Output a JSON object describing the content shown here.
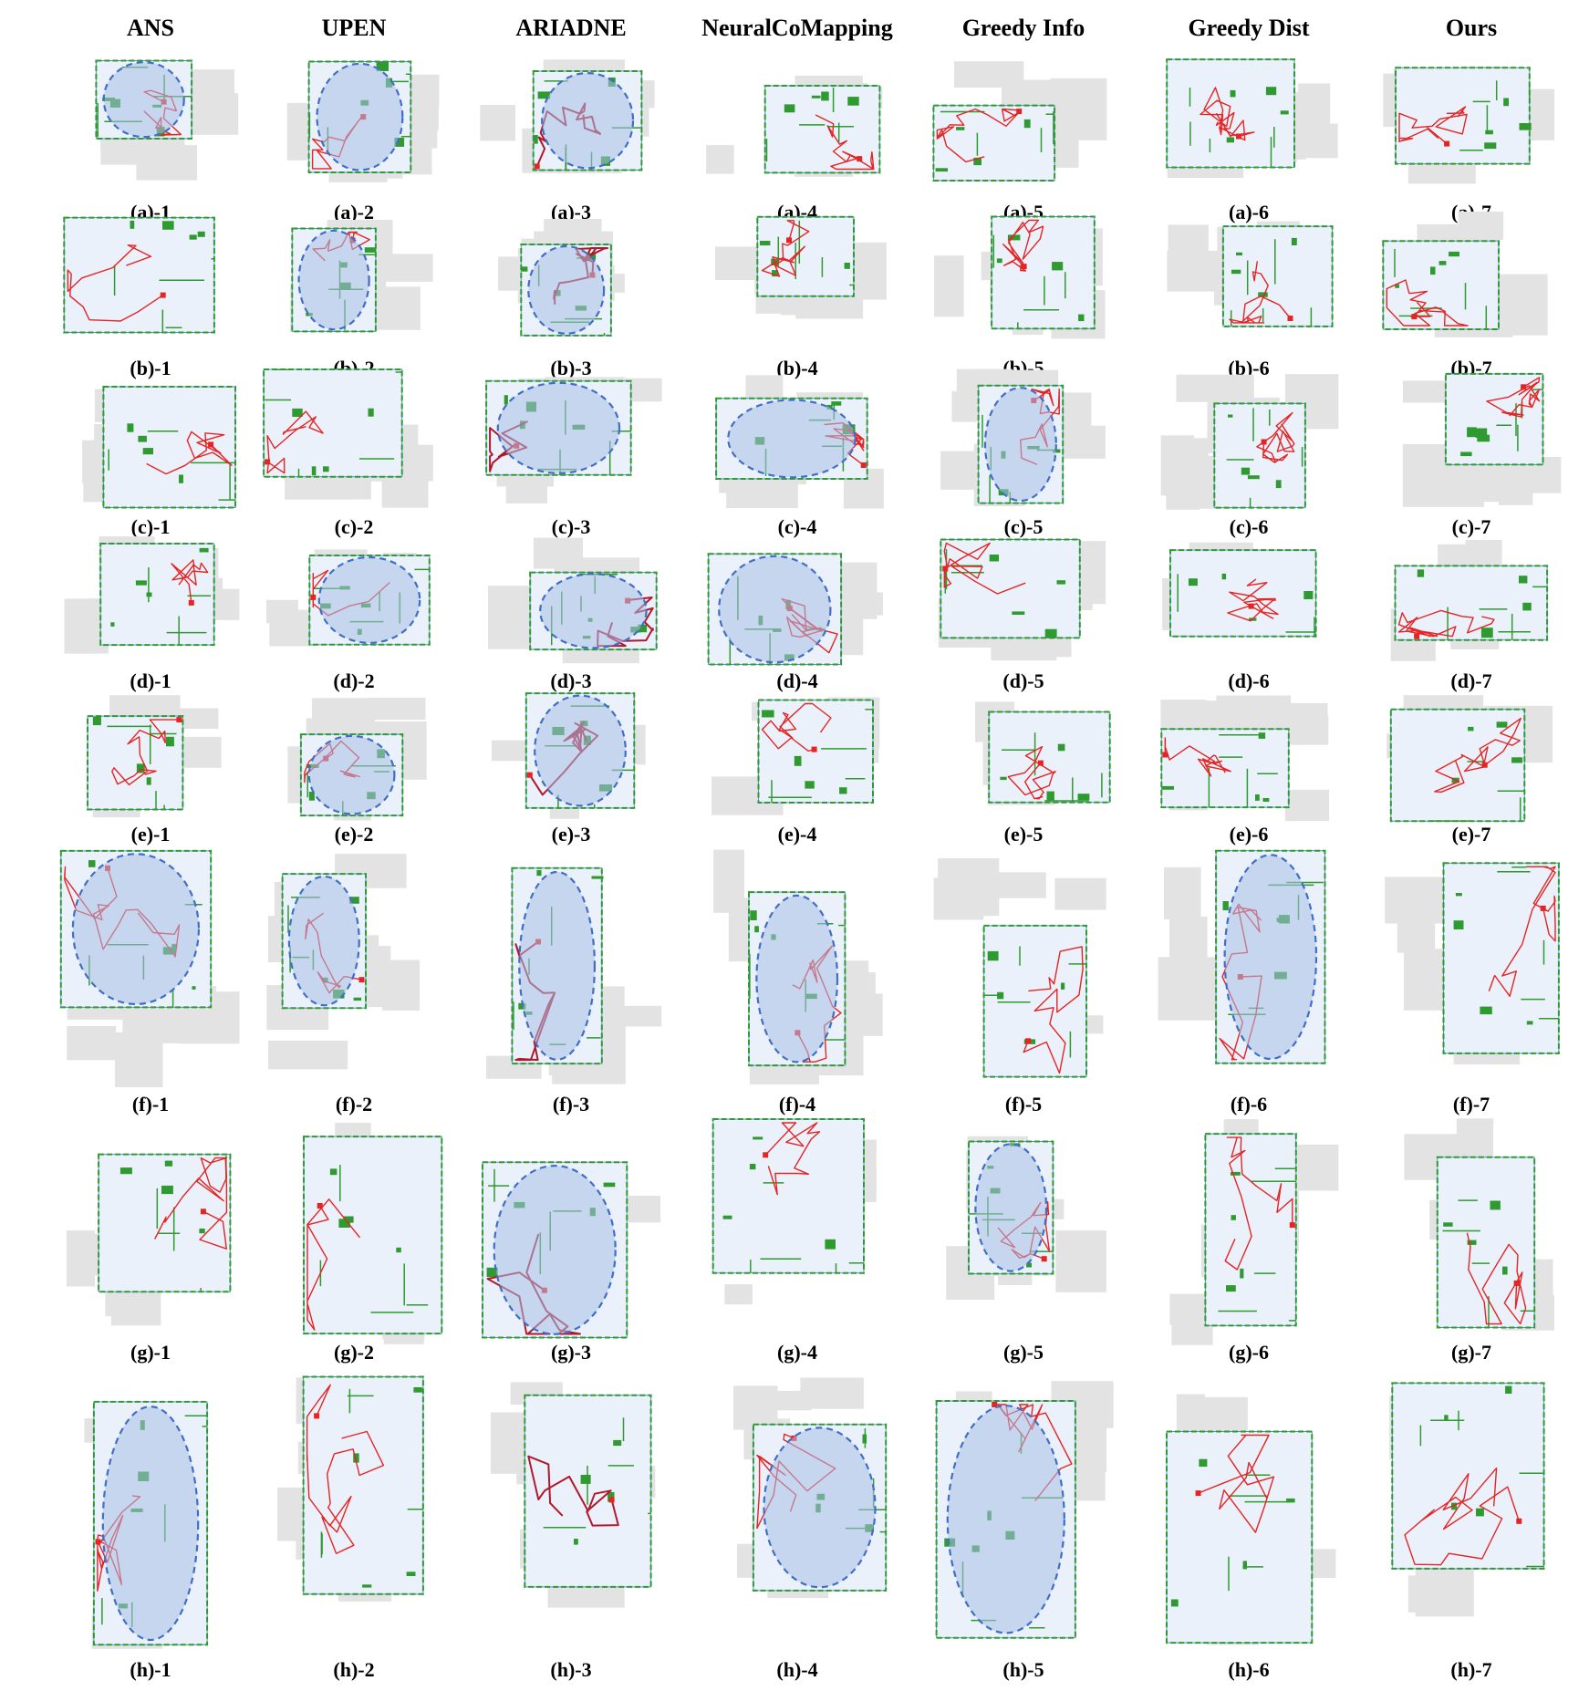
{
  "columns": [
    "ANS",
    "UPEN",
    "ARIADNE",
    "NeuralCoMapping",
    "Greedy Info",
    "Greedy Dist",
    "Ours"
  ],
  "rows": [
    "a",
    "b",
    "c",
    "d",
    "e",
    "f",
    "g",
    "h"
  ],
  "colors": {
    "background": "#ffffff",
    "unexplored": "#e3e3e3",
    "explored": "#eaf1fb",
    "obstacle": "#2f9a2f",
    "trajectory": "#e52424",
    "trajectory_dark": "#b0182c",
    "frontier": "#5b8fd0",
    "highlight_fill": "#a9bfe6",
    "highlight_stroke": "#3f6fc4"
  },
  "panels": [
    {
      "id": "a-1",
      "caption": "(a)-1",
      "highlight": true
    },
    {
      "id": "a-2",
      "caption": "(a)-2",
      "highlight": true
    },
    {
      "id": "a-3",
      "caption": "(a)-3",
      "highlight": true
    },
    {
      "id": "a-4",
      "caption": "(a)-4",
      "highlight": false
    },
    {
      "id": "a-5",
      "caption": "(a)-5",
      "highlight": false
    },
    {
      "id": "a-6",
      "caption": "(a)-6",
      "highlight": false
    },
    {
      "id": "a-7",
      "caption": "(a)-7",
      "highlight": false
    },
    {
      "id": "b-1",
      "caption": "(b)-1",
      "highlight": false
    },
    {
      "id": "b-2",
      "caption": "(b)-2",
      "highlight": true
    },
    {
      "id": "b-3",
      "caption": "(b)-3",
      "highlight": true
    },
    {
      "id": "b-4",
      "caption": "(b)-4",
      "highlight": false
    },
    {
      "id": "b-5",
      "caption": "(b)-5",
      "highlight": false
    },
    {
      "id": "b-6",
      "caption": "(b)-6",
      "highlight": false
    },
    {
      "id": "b-7",
      "caption": "(b)-7",
      "highlight": false
    },
    {
      "id": "c-1",
      "caption": "(c)-1",
      "highlight": false
    },
    {
      "id": "c-2",
      "caption": "(c)-2",
      "highlight": false
    },
    {
      "id": "c-3",
      "caption": "(c)-3",
      "highlight": true
    },
    {
      "id": "c-4",
      "caption": "(c)-4",
      "highlight": true
    },
    {
      "id": "c-5",
      "caption": "(c)-5",
      "highlight": true
    },
    {
      "id": "c-6",
      "caption": "(c)-6",
      "highlight": false
    },
    {
      "id": "c-7",
      "caption": "(c)-7",
      "highlight": false
    },
    {
      "id": "d-1",
      "caption": "(d)-1",
      "highlight": false
    },
    {
      "id": "d-2",
      "caption": "(d)-2",
      "highlight": true
    },
    {
      "id": "d-3",
      "caption": "(d)-3",
      "highlight": true
    },
    {
      "id": "d-4",
      "caption": "(d)-4",
      "highlight": true
    },
    {
      "id": "d-5",
      "caption": "(d)-5",
      "highlight": false
    },
    {
      "id": "d-6",
      "caption": "(d)-6",
      "highlight": false
    },
    {
      "id": "d-7",
      "caption": "(d)-7",
      "highlight": false
    },
    {
      "id": "e-1",
      "caption": "(e)-1",
      "highlight": false
    },
    {
      "id": "e-2",
      "caption": "(e)-2",
      "highlight": true
    },
    {
      "id": "e-3",
      "caption": "(e)-3",
      "highlight": true
    },
    {
      "id": "e-4",
      "caption": "(e)-4",
      "highlight": false
    },
    {
      "id": "e-5",
      "caption": "(e)-5",
      "highlight": false
    },
    {
      "id": "e-6",
      "caption": "(e)-6",
      "highlight": false
    },
    {
      "id": "e-7",
      "caption": "(e)-7",
      "highlight": false
    },
    {
      "id": "f-1",
      "caption": "(f)-1",
      "highlight": true
    },
    {
      "id": "f-2",
      "caption": "(f)-2",
      "highlight": true
    },
    {
      "id": "f-3",
      "caption": "(f)-3",
      "highlight": true
    },
    {
      "id": "f-4",
      "caption": "(f)-4",
      "highlight": true
    },
    {
      "id": "f-5",
      "caption": "(f)-5",
      "highlight": false
    },
    {
      "id": "f-6",
      "caption": "(f)-6",
      "highlight": true
    },
    {
      "id": "f-7",
      "caption": "(f)-7",
      "highlight": false
    },
    {
      "id": "g-1",
      "caption": "(g)-1",
      "highlight": false
    },
    {
      "id": "g-2",
      "caption": "(g)-2",
      "highlight": false
    },
    {
      "id": "g-3",
      "caption": "(g)-3",
      "highlight": true
    },
    {
      "id": "g-4",
      "caption": "(g)-4",
      "highlight": false
    },
    {
      "id": "g-5",
      "caption": "(g)-5",
      "highlight": true
    },
    {
      "id": "g-6",
      "caption": "(g)-6",
      "highlight": false
    },
    {
      "id": "g-7",
      "caption": "(g)-7",
      "highlight": false
    },
    {
      "id": "h-1",
      "caption": "(h)-1",
      "highlight": true
    },
    {
      "id": "h-2",
      "caption": "(h)-2",
      "highlight": false
    },
    {
      "id": "h-3",
      "caption": "(h)-3",
      "highlight": false
    },
    {
      "id": "h-4",
      "caption": "(h)-4",
      "highlight": true
    },
    {
      "id": "h-5",
      "caption": "(h)-5",
      "highlight": true
    },
    {
      "id": "h-6",
      "caption": "(h)-6",
      "highlight": false
    },
    {
      "id": "h-7",
      "caption": "(h)-7",
      "highlight": false
    }
  ]
}
